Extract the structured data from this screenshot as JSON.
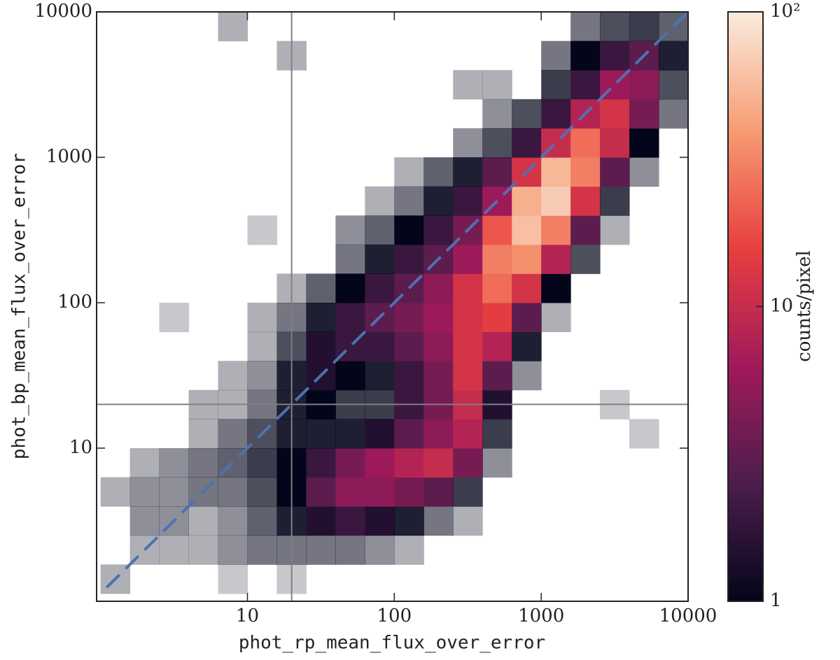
{
  "chart_data": {
    "type": "heatmap2d",
    "x_label": "phot_rp_mean_flux_over_error",
    "y_label": "phot_bp_mean_flux_over_error",
    "log_x": true,
    "log_y": true,
    "xlim": [
      0.94,
      10000
    ],
    "ylim": [
      0.885,
      10000
    ],
    "xticks": [
      10,
      100,
      1000,
      10000
    ],
    "yticks": [
      10,
      100,
      1000,
      10000
    ],
    "xbins": [
      1,
      1.585,
      2.512,
      3.981,
      6.31,
      10,
      15.85,
      25.12,
      39.81,
      63.1,
      100,
      158.5,
      251.2,
      398.1,
      631,
      1000,
      1585,
      2512,
      3981,
      6310,
      10000
    ],
    "ybins": [
      1,
      1.585,
      2.512,
      3.981,
      6.31,
      10,
      15.85,
      25.12,
      39.81,
      63.1,
      100,
      158.5,
      251.2,
      398.1,
      631,
      1000,
      1585,
      2512,
      3981,
      6310,
      10000
    ],
    "counts": [
      [
        0.1,
        null,
        null,
        null,
        0.05,
        null,
        0.05,
        null,
        null,
        null,
        null,
        null,
        null,
        null,
        null,
        null,
        null,
        null,
        null,
        null
      ],
      [
        null,
        0.1,
        0.1,
        0.1,
        0.2,
        0.3,
        0.3,
        0.3,
        0.3,
        0.2,
        0.1,
        null,
        null,
        null,
        null,
        null,
        null,
        null,
        null,
        null
      ],
      [
        null,
        0.2,
        0.2,
        0.1,
        0.2,
        0.4,
        0.8,
        1.5,
        2,
        1.5,
        0.8,
        0.3,
        0.1,
        null,
        null,
        null,
        null,
        null,
        null,
        null
      ],
      [
        0.1,
        0.2,
        0.2,
        0.3,
        0.3,
        0.5,
        1,
        3,
        5,
        5,
        4,
        3,
        0.6,
        null,
        null,
        null,
        null,
        null,
        null,
        null
      ],
      [
        null,
        0.1,
        0.2,
        0.3,
        0.4,
        0.6,
        1,
        2,
        4,
        6,
        8,
        10,
        4,
        0.2,
        null,
        null,
        null,
        null,
        null,
        null
      ],
      [
        null,
        null,
        null,
        0.1,
        0.3,
        0.5,
        0.8,
        0.8,
        0.8,
        1.5,
        3,
        5,
        8,
        0.6,
        null,
        null,
        null,
        null,
        0.05,
        null
      ],
      [
        null,
        null,
        null,
        0.1,
        0.1,
        0.3,
        0.8,
        1,
        0.6,
        0.6,
        2,
        4,
        10,
        1.5,
        null,
        null,
        null,
        0.05,
        null,
        null
      ],
      [
        null,
        null,
        null,
        null,
        0.1,
        0.2,
        0.8,
        1.5,
        1,
        0.8,
        2,
        4,
        12,
        3,
        0.2,
        null,
        null,
        null,
        null,
        null
      ],
      [
        null,
        null,
        null,
        null,
        null,
        0.1,
        0.5,
        1.5,
        2,
        2,
        3,
        5,
        12,
        8,
        0.8,
        null,
        null,
        null,
        null,
        null
      ],
      [
        null,
        null,
        0.05,
        null,
        null,
        0.1,
        0.3,
        0.8,
        2,
        3,
        4,
        6,
        12,
        15,
        3,
        0.1,
        null,
        null,
        null,
        null
      ],
      [
        null,
        null,
        null,
        null,
        null,
        null,
        0.1,
        0.4,
        1,
        2,
        3,
        5,
        12,
        25,
        12,
        1,
        null,
        null,
        null,
        null
      ],
      [
        null,
        null,
        null,
        null,
        null,
        null,
        null,
        null,
        0.3,
        0.8,
        2,
        3,
        6,
        30,
        35,
        8,
        0.5,
        null,
        null,
        null
      ],
      [
        null,
        null,
        null,
        null,
        null,
        0.05,
        null,
        null,
        0.2,
        0.4,
        1,
        2,
        4,
        20,
        60,
        30,
        3,
        0.1,
        null,
        null
      ],
      [
        null,
        null,
        null,
        null,
        null,
        null,
        null,
        null,
        null,
        0.1,
        0.3,
        0.8,
        2,
        6,
        50,
        70,
        12,
        0.6,
        null,
        null
      ],
      [
        null,
        null,
        null,
        null,
        null,
        null,
        null,
        null,
        null,
        null,
        0.1,
        0.4,
        0.8,
        3,
        12,
        55,
        30,
        3,
        0.2,
        null
      ],
      [
        null,
        null,
        null,
        null,
        null,
        null,
        null,
        null,
        null,
        null,
        null,
        null,
        0.2,
        0.5,
        2,
        10,
        25,
        10,
        1,
        null
      ],
      [
        null,
        null,
        null,
        null,
        null,
        null,
        null,
        null,
        null,
        null,
        null,
        null,
        null,
        0.2,
        0.5,
        2,
        8,
        12,
        4,
        0.3
      ],
      [
        null,
        null,
        null,
        null,
        null,
        null,
        null,
        null,
        null,
        null,
        null,
        null,
        0.1,
        0.1,
        null,
        0.6,
        2,
        6,
        5,
        0.5
      ],
      [
        null,
        null,
        null,
        null,
        null,
        null,
        0.1,
        null,
        null,
        null,
        null,
        null,
        null,
        null,
        null,
        0.3,
        1,
        2,
        3,
        0.8
      ],
      [
        null,
        null,
        null,
        null,
        0.1,
        null,
        null,
        null,
        null,
        null,
        null,
        null,
        null,
        null,
        null,
        null,
        0.3,
        0.5,
        0.6,
        0.4
      ]
    ],
    "colormap": [
      "#03051a",
      "#4c1d4b",
      "#a11a5b",
      "#e83f3f",
      "#f69c73",
      "#faebdd"
    ],
    "reference_line": {
      "x": [
        1.1,
        10000
      ],
      "y": [
        1.1,
        10000
      ],
      "color": "#4c72b0"
    },
    "vlines": [
      20
    ],
    "hlines": [
      20
    ],
    "cut_color": "#808080",
    "colorbar": {
      "label": "counts/pixel",
      "log": true,
      "clim": [
        1,
        100
      ],
      "ticks": [
        1,
        10,
        {
          "value": 100,
          "label": "10²"
        }
      ]
    }
  }
}
